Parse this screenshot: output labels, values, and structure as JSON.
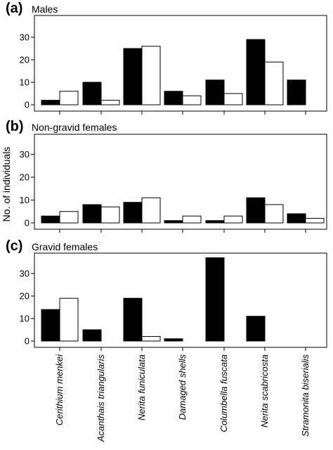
{
  "chart_data": {
    "type": "bar",
    "ylabel": "No. of individuals",
    "categories": [
      "Cerithium menkei",
      "Acanthais triangularis",
      "Nerita funiculata",
      "Damaged shells",
      "Columbella fuscata",
      "Nerita scabricosta",
      "Stramonita biserialis"
    ],
    "category_italic": [
      true,
      true,
      true,
      false,
      true,
      true,
      true
    ],
    "colors": {
      "series1": "#000000",
      "series2": "#ffffff",
      "stroke": "#000000"
    },
    "panels": [
      {
        "letter": "(a)",
        "title": "Males",
        "ylim": [
          0,
          35
        ],
        "yticks": [
          0,
          10,
          20,
          30
        ],
        "series": [
          {
            "values": [
              2,
              10,
              25,
              6,
              11,
              29,
              11
            ]
          },
          {
            "values": [
              6,
              2,
              26,
              4,
              5,
              19,
              0
            ]
          }
        ]
      },
      {
        "letter": "(b)",
        "title": "Non-gravid females",
        "ylim": [
          0,
          35
        ],
        "yticks": [
          0,
          10,
          20,
          30
        ],
        "series": [
          {
            "values": [
              3,
              8,
              9,
              1,
              1,
              11,
              4
            ]
          },
          {
            "values": [
              5,
              7,
              11,
              3,
              3,
              8,
              2
            ]
          }
        ]
      },
      {
        "letter": "(c)",
        "title": "Gravid females",
        "ylim": [
          0,
          40
        ],
        "yticks": [
          0,
          10,
          20,
          30
        ],
        "series": [
          {
            "values": [
              14,
              5,
              19,
              1,
              37,
              11,
              0
            ]
          },
          {
            "values": [
              19,
              0,
              2,
              0,
              0,
              0,
              0
            ]
          }
        ]
      }
    ]
  }
}
